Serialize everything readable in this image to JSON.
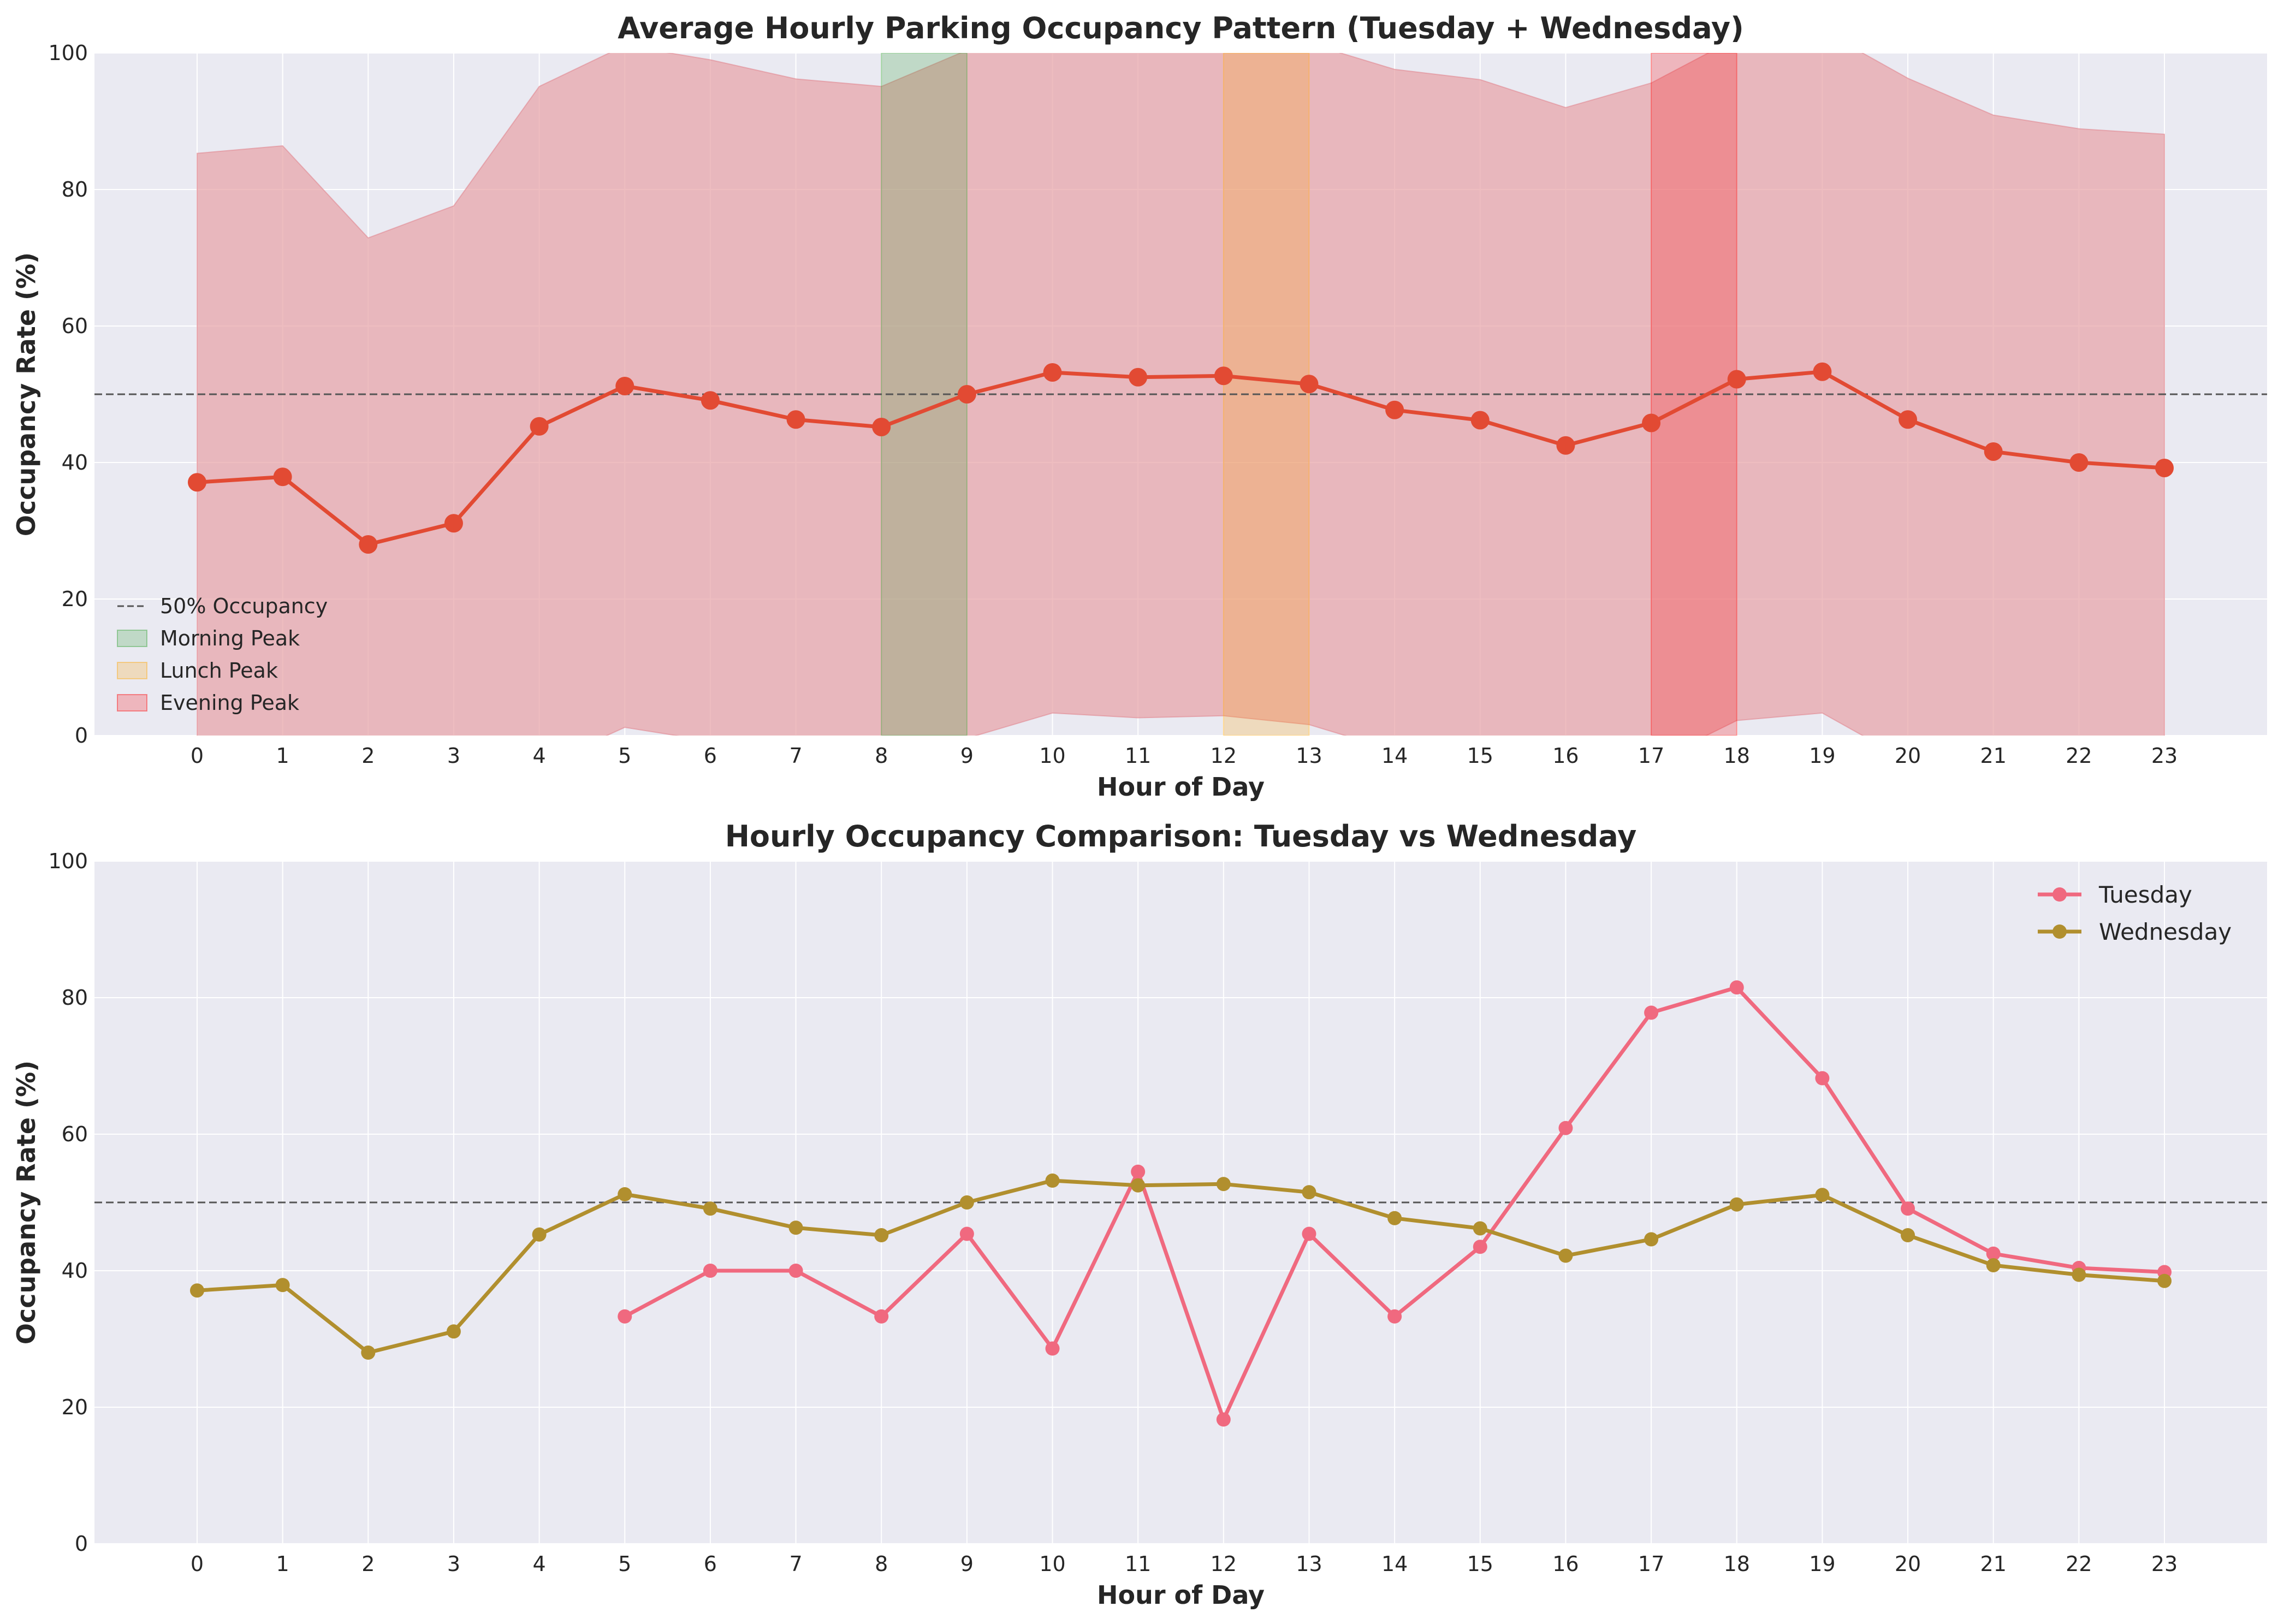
{
  "chart_data": [
    {
      "type": "line",
      "title": "Average Hourly Parking Occupancy Pattern (Tuesday + Wednesday)",
      "xlabel": "Hour of Day",
      "ylabel": "Occupancy Rate (%)",
      "xlim": [
        -1.2,
        24.2
      ],
      "ylim": [
        0,
        100
      ],
      "x": [
        0,
        1,
        2,
        3,
        4,
        5,
        6,
        7,
        8,
        9,
        10,
        11,
        12,
        13,
        14,
        15,
        16,
        17,
        18,
        19,
        20,
        21,
        22,
        23
      ],
      "xticks": [
        "0",
        "1",
        "2",
        "3",
        "4",
        "5",
        "6",
        "7",
        "8",
        "9",
        "10",
        "11",
        "12",
        "13",
        "14",
        "15",
        "16",
        "17",
        "18",
        "19",
        "20",
        "21",
        "22",
        "23"
      ],
      "yticks": [
        "0",
        "20",
        "40",
        "60",
        "80",
        "100"
      ],
      "grid": true,
      "series": [
        {
          "values": [
            37.1,
            37.9,
            28.0,
            31.1,
            45.3,
            51.2,
            49.1,
            46.3,
            45.2,
            50.0,
            53.2,
            52.5,
            52.7,
            51.5,
            47.7,
            46.2,
            42.5,
            45.8,
            52.2,
            53.3,
            46.3,
            41.6,
            40.0,
            39.2
          ],
          "color": "#e24a33"
        }
      ],
      "band": {
        "upper": [
          85.3,
          86.4,
          72.9,
          77.6,
          95.1,
          101.1,
          99.0,
          96.2,
          95.1,
          100.4,
          103.1,
          102.4,
          102.5,
          101.4,
          97.6,
          96.1,
          92.0,
          95.6,
          102.2,
          103.3,
          96.3,
          90.9,
          88.9,
          88.1
        ],
        "lower": [
          -11.1,
          -10.6,
          -16.9,
          -15.4,
          -4.5,
          1.2,
          -0.8,
          -3.6,
          -4.7,
          -0.4,
          3.3,
          2.6,
          2.9,
          1.6,
          -2.2,
          -3.7,
          -7.0,
          -4.0,
          2.2,
          3.3,
          -3.7,
          -7.7,
          -8.9,
          -9.7
        ],
        "color": "#e8a3a8"
      },
      "reference_line": {
        "y": 50,
        "label": "50% Occupancy",
        "color": "#555555"
      },
      "spans": [
        {
          "label": "Morning Peak",
          "from": 8,
          "to": 9,
          "color": "#2ca02c"
        },
        {
          "label": "Lunch Peak",
          "from": 12,
          "to": 13,
          "color": "#ffa500"
        },
        {
          "label": "Evening Peak",
          "from": 17,
          "to": 18,
          "color": "#ff0000"
        }
      ],
      "legend_position": "lower-left"
    },
    {
      "type": "line",
      "title": "Hourly Occupancy Comparison: Tuesday vs Wednesday",
      "xlabel": "Hour of Day",
      "ylabel": "Occupancy Rate (%)",
      "xlim": [
        -1.2,
        24.2
      ],
      "ylim": [
        0,
        100
      ],
      "x": [
        0,
        1,
        2,
        3,
        4,
        5,
        6,
        7,
        8,
        9,
        10,
        11,
        12,
        13,
        14,
        15,
        16,
        17,
        18,
        19,
        20,
        21,
        22,
        23
      ],
      "xticks": [
        "0",
        "1",
        "2",
        "3",
        "4",
        "5",
        "6",
        "7",
        "8",
        "9",
        "10",
        "11",
        "12",
        "13",
        "14",
        "15",
        "16",
        "17",
        "18",
        "19",
        "20",
        "21",
        "22",
        "23"
      ],
      "yticks": [
        "0",
        "20",
        "40",
        "60",
        "80",
        "100"
      ],
      "grid": true,
      "reference_line": {
        "y": 50,
        "color": "#555555"
      },
      "series": [
        {
          "name": "Tuesday",
          "x": [
            5,
            6,
            7,
            8,
            9,
            10,
            11,
            12,
            13,
            14,
            15,
            16,
            17,
            18,
            19,
            20,
            21,
            22,
            23
          ],
          "values": [
            33.3,
            40.0,
            40.0,
            33.3,
            45.4,
            28.6,
            54.5,
            18.2,
            45.4,
            33.3,
            43.5,
            60.9,
            77.8,
            81.5,
            68.2,
            49.1,
            42.5,
            40.4,
            39.8
          ],
          "color": "#f0697f"
        },
        {
          "name": "Wednesday",
          "x": [
            0,
            1,
            2,
            3,
            4,
            5,
            6,
            7,
            8,
            9,
            10,
            11,
            12,
            13,
            14,
            15,
            16,
            17,
            18,
            19,
            20,
            21,
            22,
            23
          ],
          "values": [
            37.1,
            37.9,
            28.0,
            31.1,
            45.3,
            51.2,
            49.1,
            46.3,
            45.2,
            50.0,
            53.2,
            52.5,
            52.7,
            51.5,
            47.7,
            46.2,
            42.2,
            44.6,
            49.7,
            51.1,
            45.2,
            40.8,
            39.4,
            38.5
          ],
          "color": "#b18f2e"
        }
      ],
      "legend_position": "top-right"
    }
  ]
}
